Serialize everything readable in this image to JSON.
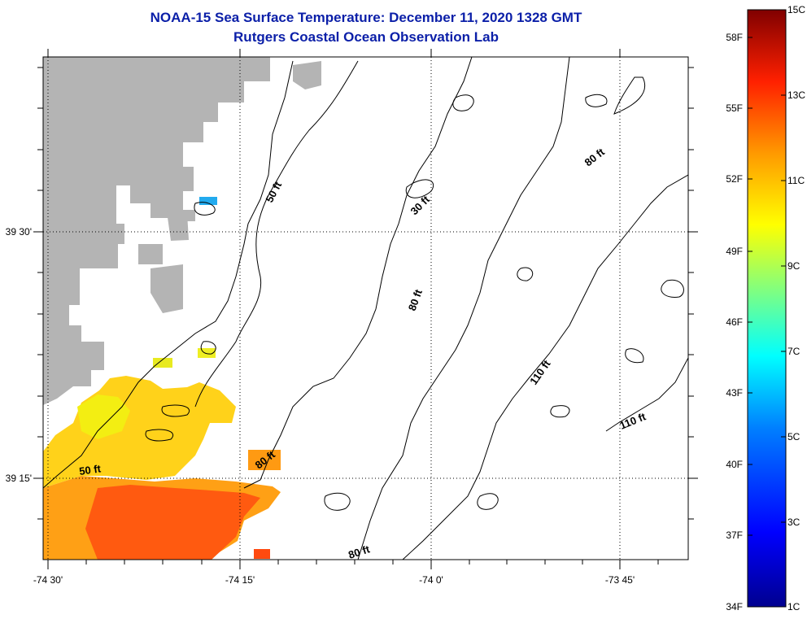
{
  "header": {
    "title": "NOAA-15 Sea Surface Temperature:  December 11, 2020 1328 GMT",
    "subtitle": "Rutgers Coastal Ocean Observation Lab"
  },
  "axes": {
    "longitude_ticks": [
      "-74 30'",
      "-74 15'",
      "-74 0'",
      "-73 45'"
    ],
    "latitude_ticks": [
      "39 30'",
      "39 15'"
    ]
  },
  "contour_labels": [
    "50 ft",
    "30 ft",
    "80 ft",
    "80 ft",
    "110 ft",
    "110 ft",
    "50 ft",
    "80 ft",
    "80 ft"
  ],
  "colorbar": {
    "fahrenheit_ticks": [
      "58F",
      "55F",
      "52F",
      "49F",
      "46F",
      "43F",
      "40F",
      "37F",
      "34F"
    ],
    "celsius_ticks": [
      "15C",
      "13C",
      "11C",
      "9C",
      "7C",
      "5C",
      "3C",
      "1C"
    ],
    "colors": [
      "#00008f",
      "#0000ff",
      "#0080ff",
      "#00ffff",
      "#80ff80",
      "#ffff00",
      "#ff8000",
      "#ff0000",
      "#800000"
    ]
  },
  "colors": {
    "land": "#b4b4b4",
    "title": "#0b1fa8",
    "warm_sst": "#ffcc00",
    "hot_sst": "#ff4000"
  }
}
